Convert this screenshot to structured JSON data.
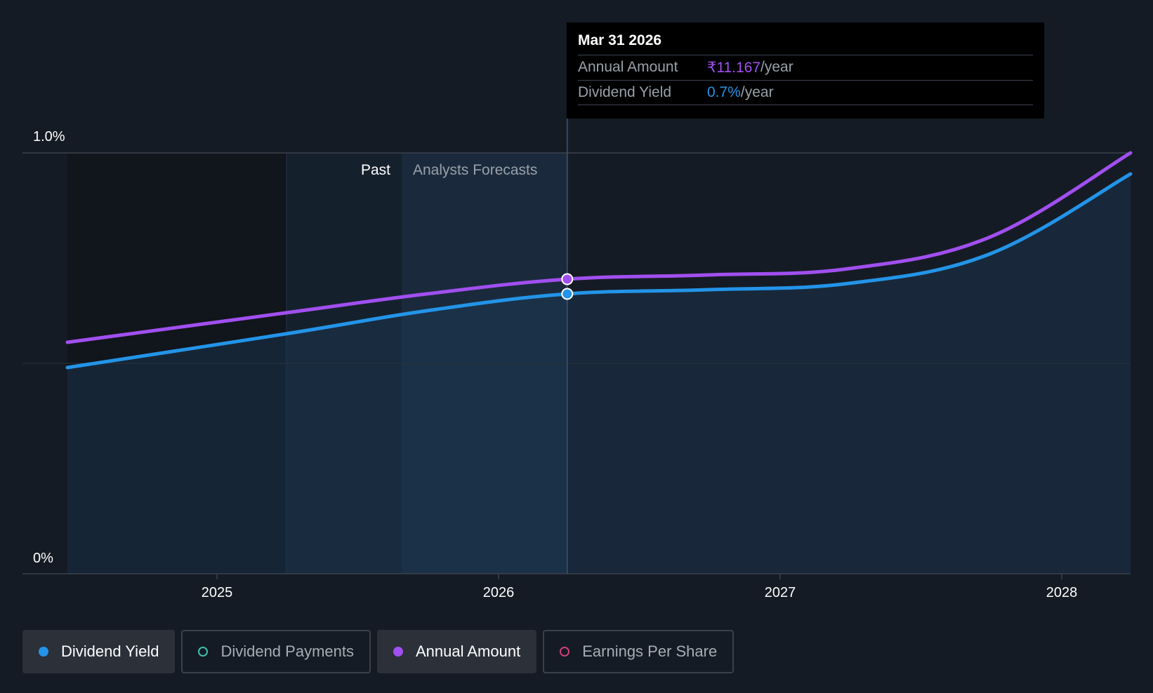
{
  "chart_data": {
    "type": "line",
    "x_axis": {
      "ticks": [
        "2025",
        "2026",
        "2027",
        "2028"
      ],
      "range": [
        "2024-06",
        "2028-03-31"
      ]
    },
    "y_axis": {
      "ticks": [
        "0%",
        "1.0%"
      ],
      "ylim": [
        0,
        1.0
      ]
    },
    "regions": {
      "past_label": "Past",
      "forecast_label": "Analysts Forecasts"
    },
    "series": [
      {
        "name": "Dividend Yield",
        "color": "#2394e8",
        "unit": "%",
        "points": [
          {
            "x": "2024-06-30",
            "y": 0.49
          },
          {
            "x": "2025-03-31",
            "y": 0.57
          },
          {
            "x": "2025-09-30",
            "y": 0.625
          },
          {
            "x": "2026-03-31",
            "y": 0.665
          },
          {
            "x": "2026-09-30",
            "y": 0.675
          },
          {
            "x": "2027-03-31",
            "y": 0.69
          },
          {
            "x": "2027-09-30",
            "y": 0.76
          },
          {
            "x": "2028-03-31",
            "y": 0.95
          }
        ]
      },
      {
        "name": "Annual Amount",
        "color": "#a14ff0",
        "unit": "₹",
        "points": [
          {
            "x": "2024-06-30",
            "y": 0.55
          },
          {
            "x": "2025-03-31",
            "y": 0.62
          },
          {
            "x": "2025-09-30",
            "y": 0.665
          },
          {
            "x": "2026-03-31",
            "y": 0.7
          },
          {
            "x": "2026-09-30",
            "y": 0.71
          },
          {
            "x": "2027-03-31",
            "y": 0.725
          },
          {
            "x": "2027-09-30",
            "y": 0.8
          },
          {
            "x": "2028-03-31",
            "y": 1.0
          }
        ]
      }
    ],
    "tooltip": {
      "date": "Mar 31 2026",
      "rows": [
        {
          "label": "Annual Amount",
          "value": "₹11.167",
          "unit": "/year",
          "color": "#a14ff0"
        },
        {
          "label": "Dividend Yield",
          "value": "0.7%",
          "unit": "/year",
          "color": "#2394e8"
        }
      ]
    },
    "highlight_x": "2026-03-31"
  },
  "legend": [
    {
      "label": "Dividend Yield",
      "color": "#2394e8",
      "active": true
    },
    {
      "label": "Dividend Payments",
      "color": "#3fbfae",
      "active": false
    },
    {
      "label": "Annual Amount",
      "color": "#a14ff0",
      "active": true
    },
    {
      "label": "Earnings Per Share",
      "color": "#d0407a",
      "active": false
    }
  ]
}
